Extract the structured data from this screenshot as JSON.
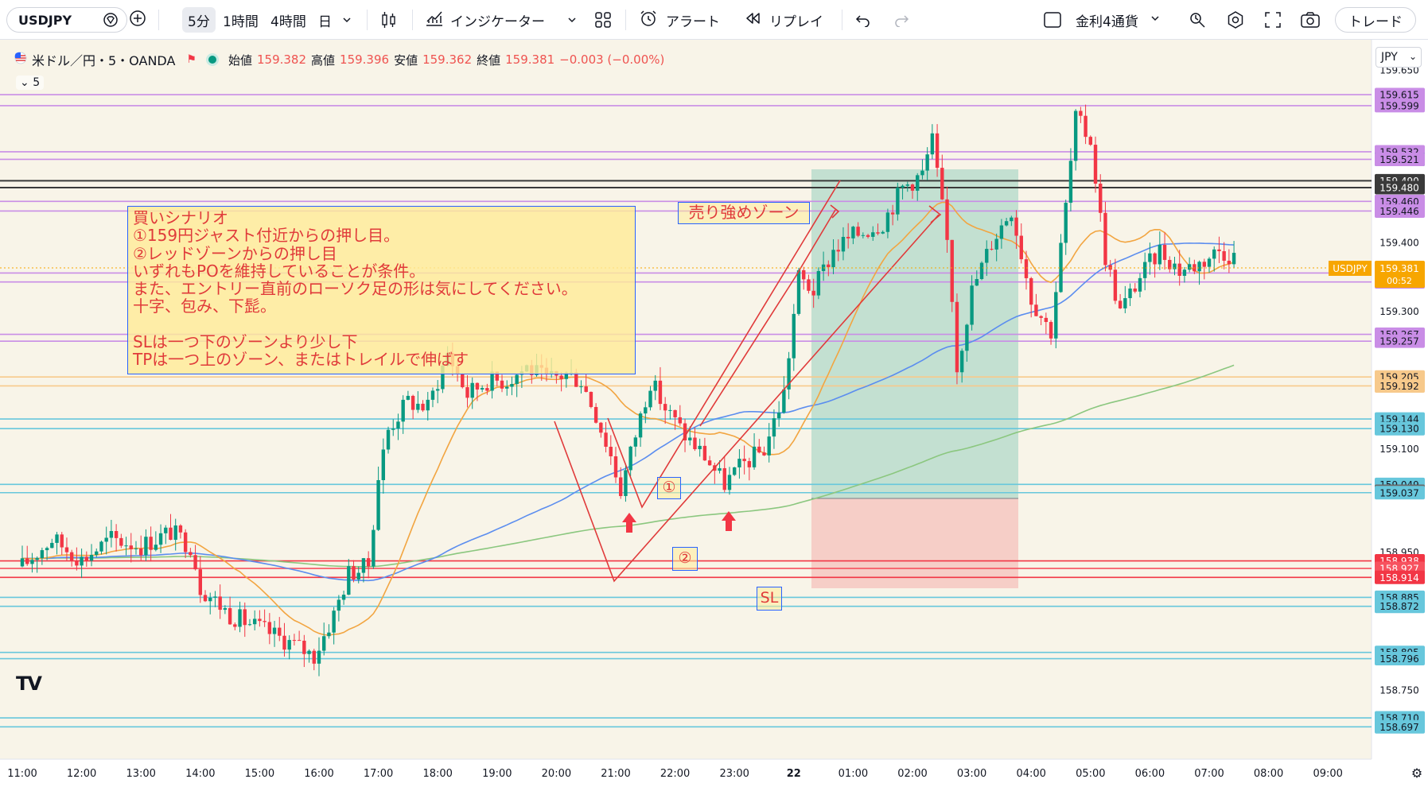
{
  "toolbar": {
    "symbol": "USDJPY",
    "intervals": [
      "5分",
      "1時間",
      "4時間",
      "日"
    ],
    "indicators_label": "インジケーター",
    "alert_label": "アラート",
    "replay_label": "リプレイ",
    "layout_label": "金利4通貨",
    "trade_label": "トレード"
  },
  "legend": {
    "title": "米ドル／円・5・OANDA",
    "open_label": "始値",
    "open": "159.382",
    "high_label": "高値",
    "high": "159.396",
    "low_label": "安値",
    "low": "159.362",
    "close_label": "終値",
    "close": "159.381",
    "change": "−0.003 (−0.00%)",
    "ma_toggle": "5"
  },
  "currency": "JPY",
  "scenario_note": {
    "lines": [
      "買いシナリオ",
      "①159円ジャスト付近からの押し目。",
      "②レッドゾーンからの押し目",
      "いずれもPOを維持していることが条件。",
      "また、エントリー直前のローソク足の形は気にしてください。",
      "十字、包み、下髭。",
      "",
      "SLは一つ下のゾーンより少し下",
      "TPは一つ上のゾーン、またはトレイルで伸ばす"
    ]
  },
  "annotations": {
    "sell_zone": "売り強めゾーン",
    "label_1": "①",
    "label_2": "②",
    "sl": "SL"
  },
  "chart_data": {
    "type": "candlestick",
    "symbol": "USDJPY",
    "interval": "5",
    "y_range": [
      158.65,
      159.652
    ],
    "last_price": "159.381",
    "countdown": "00:52",
    "last_price_tag": "USDJPY",
    "x_ticks": [
      "11:00",
      "12:00",
      "13:00",
      "14:00",
      "15:00",
      "16:00",
      "17:00",
      "18:00",
      "19:00",
      "20:00",
      "21:00",
      "22:00",
      "23:00",
      "22",
      "01:00",
      "02:00",
      "03:00",
      "04:00",
      "05:00",
      "06:00",
      "07:00",
      "08:00",
      "09:00"
    ],
    "y_ticks": [
      "159.650",
      "159.400",
      "159.300",
      "159.100",
      "158.950",
      "158.750"
    ],
    "levels": [
      {
        "value": "159.615",
        "color": "#c98de6"
      },
      {
        "value": "159.599",
        "color": "#c98de6"
      },
      {
        "value": "159.532",
        "color": "#c98de6"
      },
      {
        "value": "159.521",
        "color": "#089981"
      },
      {
        "value": "159.521",
        "color": "#c98de6"
      },
      {
        "value": "159.490",
        "color": "#3a3a3a"
      },
      {
        "value": "159.480",
        "color": "#3a3a3a"
      },
      {
        "value": "159.460",
        "color": "#c98de6"
      },
      {
        "value": "159.446",
        "color": "#c98de6"
      },
      {
        "value": "159.356",
        "color": "#c98de6"
      },
      {
        "value": "159.343",
        "color": "#c98de6"
      },
      {
        "value": "159.267",
        "color": "#c98de6"
      },
      {
        "value": "159.257",
        "color": "#c98de6"
      },
      {
        "value": "159.205",
        "color": "#f7c98b"
      },
      {
        "value": "159.192",
        "color": "#f7c98b"
      },
      {
        "value": "159.144",
        "color": "#67c7dc"
      },
      {
        "value": "159.130",
        "color": "#67c7dc"
      },
      {
        "value": "159.049",
        "color": "#67c7dc"
      },
      {
        "value": "159.039",
        "color": "#6b6b6b"
      },
      {
        "value": "159.037",
        "color": "#67c7dc"
      },
      {
        "value": "158.938",
        "color": "#f23645"
      },
      {
        "value": "158.927",
        "color": "#f7525f"
      },
      {
        "value": "158.914",
        "color": "#f23645"
      },
      {
        "value": "158.885",
        "color": "#67c7dc"
      },
      {
        "value": "158.872",
        "color": "#67c7dc"
      },
      {
        "value": "158.805",
        "color": "#67c7dc"
      },
      {
        "value": "158.796",
        "color": "#67c7dc"
      },
      {
        "value": "158.710",
        "color": "#67c7dc"
      },
      {
        "value": "158.697",
        "color": "#67c7dc"
      }
    ],
    "keypoints": [
      [
        11.0,
        158.93
      ],
      [
        11.5,
        158.97
      ],
      [
        12.0,
        158.94
      ],
      [
        12.5,
        158.97
      ],
      [
        13.0,
        158.96
      ],
      [
        13.5,
        158.98
      ],
      [
        13.85,
        158.96
      ],
      [
        14.0,
        158.9
      ],
      [
        14.5,
        158.86
      ],
      [
        15.0,
        158.84
      ],
      [
        15.5,
        158.82
      ],
      [
        15.92,
        158.8
      ],
      [
        16.25,
        158.86
      ],
      [
        16.5,
        158.92
      ],
      [
        16.83,
        158.93
      ],
      [
        17.0,
        159.06
      ],
      [
        17.17,
        159.13
      ],
      [
        17.5,
        159.17
      ],
      [
        17.83,
        159.16
      ],
      [
        18.17,
        159.24
      ],
      [
        18.5,
        159.18
      ],
      [
        18.83,
        159.2
      ],
      [
        19.17,
        159.2
      ],
      [
        19.5,
        159.22
      ],
      [
        19.83,
        159.2
      ],
      [
        20.17,
        159.21
      ],
      [
        20.42,
        159.2
      ],
      [
        20.67,
        159.15
      ],
      [
        20.92,
        159.09
      ],
      [
        21.08,
        159.04
      ],
      [
        21.33,
        159.12
      ],
      [
        21.58,
        159.2
      ],
      [
        21.83,
        159.16
      ],
      [
        22.17,
        159.12
      ],
      [
        22.5,
        159.09
      ],
      [
        22.83,
        159.05
      ],
      [
        23.17,
        159.08
      ],
      [
        23.5,
        159.1
      ],
      [
        23.83,
        159.18
      ],
      [
        24.08,
        159.35
      ],
      [
        24.33,
        159.33
      ],
      [
        24.67,
        159.39
      ],
      [
        25.0,
        159.41
      ],
      [
        25.5,
        159.43
      ],
      [
        25.83,
        159.48
      ],
      [
        26.17,
        159.5
      ],
      [
        26.33,
        159.55
      ],
      [
        26.5,
        159.45
      ],
      [
        26.62,
        159.38
      ],
      [
        26.75,
        159.22
      ],
      [
        27.0,
        159.33
      ],
      [
        27.33,
        159.4
      ],
      [
        27.67,
        159.45
      ],
      [
        28.0,
        159.32
      ],
      [
        28.33,
        159.27
      ],
      [
        28.58,
        159.45
      ],
      [
        28.75,
        159.58
      ],
      [
        29.0,
        159.55
      ],
      [
        29.25,
        159.38
      ],
      [
        29.5,
        159.3
      ],
      [
        29.83,
        159.35
      ],
      [
        30.17,
        159.39
      ],
      [
        30.5,
        159.36
      ],
      [
        30.83,
        159.37
      ],
      [
        31.17,
        159.39
      ],
      [
        31.42,
        159.38
      ]
    ]
  }
}
